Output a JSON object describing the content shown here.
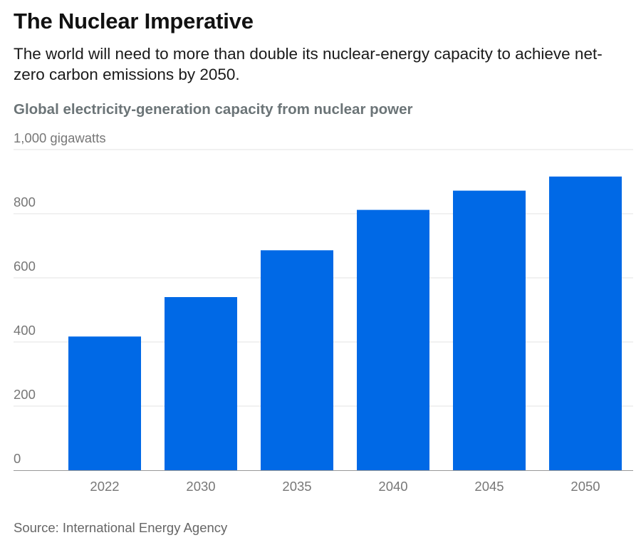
{
  "header": {
    "title": "The Nuclear Imperative",
    "subtitle": "The world will need to more than double its nuclear-energy capacity to achieve net-zero carbon emissions by 2050."
  },
  "chart_data": {
    "type": "bar",
    "title": "Global electricity-generation capacity from nuclear power",
    "ylabel": "gigawatts",
    "categories": [
      "2022",
      "2030",
      "2035",
      "2040",
      "2045",
      "2050"
    ],
    "values": [
      417,
      540,
      686,
      812,
      872,
      916
    ],
    "ylim": [
      0,
      1000
    ],
    "y_ticks": [
      0,
      200,
      400,
      600,
      800,
      1000
    ],
    "y_tick_labels": [
      "0",
      "200",
      "400",
      "600",
      "800",
      "1,000 gigawatts"
    ],
    "grid": true,
    "legend": "none",
    "bar_color": "#0069e6",
    "grid_color": "#e3e3e3",
    "axis_color": "#999999",
    "tick_label_color": "#777777"
  },
  "footer": {
    "source": "Source: International Energy Agency"
  }
}
